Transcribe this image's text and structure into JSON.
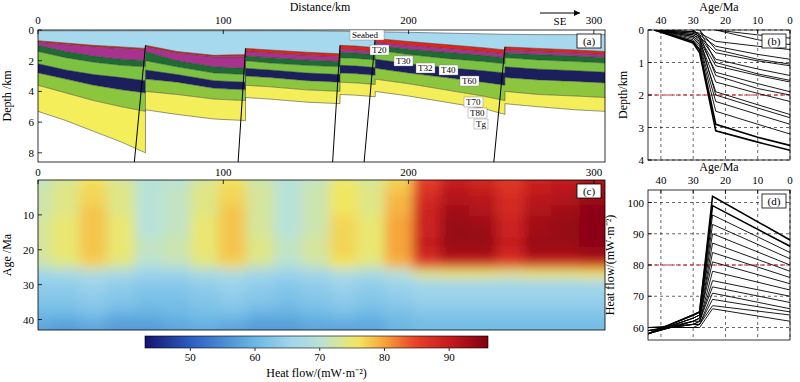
{
  "chart_data": [
    {
      "type": "cross_section",
      "title": "(a)",
      "x_label": "Distance/km",
      "y_label": "Depth /km",
      "annotation": "SE",
      "x": [
        0,
        15,
        30,
        45,
        58,
        58,
        75,
        95,
        112,
        112,
        125,
        145,
        163,
        163,
        172,
        182,
        182,
        200,
        220,
        240,
        252,
        252,
        270,
        290,
        306
      ],
      "series": [
        {
          "name": "Seabed",
          "color": "#a6d8ee",
          "values": [
            0.05,
            0.05,
            0.05,
            0.05,
            0.05,
            0.05,
            0.05,
            0.05,
            0.05,
            0.05,
            0.05,
            0.05,
            0.08,
            0.08,
            0.1,
            0.12,
            0.12,
            0.15,
            0.2,
            0.25,
            0.28,
            0.28,
            0.3,
            0.3,
            0.3
          ]
        },
        {
          "name": "T20",
          "color": "#e0241c",
          "values": [
            0.7,
            0.85,
            1.0,
            1.1,
            1.2,
            1.0,
            1.4,
            1.65,
            1.6,
            1.2,
            1.3,
            1.45,
            1.55,
            1.0,
            1.05,
            1.15,
            0.55,
            0.75,
            0.95,
            1.15,
            1.3,
            1.1,
            1.2,
            1.3,
            1.4
          ]
        },
        {
          "name": "T30",
          "color": "#a8338f",
          "values": [
            0.8,
            0.95,
            1.1,
            1.2,
            1.3,
            1.1,
            1.5,
            1.75,
            1.75,
            1.4,
            1.5,
            1.65,
            1.75,
            1.25,
            1.3,
            1.4,
            0.8,
            1.0,
            1.2,
            1.4,
            1.55,
            1.3,
            1.4,
            1.5,
            1.6
          ]
        },
        {
          "name": "T32",
          "color": "#1f6b34",
          "values": [
            1.0,
            1.4,
            1.7,
            1.9,
            2.0,
            1.4,
            2.0,
            2.4,
            2.5,
            1.7,
            1.8,
            1.95,
            2.05,
            1.45,
            1.5,
            1.6,
            1.0,
            1.25,
            1.45,
            1.65,
            1.8,
            1.5,
            1.6,
            1.7,
            1.8
          ]
        },
        {
          "name": "T40",
          "color": "#7cc242",
          "values": [
            1.4,
            1.8,
            2.1,
            2.3,
            2.4,
            2.0,
            2.4,
            2.8,
            2.9,
            2.0,
            2.15,
            2.3,
            2.4,
            1.8,
            1.85,
            1.95,
            1.3,
            1.6,
            1.85,
            2.05,
            2.2,
            1.8,
            1.95,
            2.05,
            2.15
          ]
        },
        {
          "name": "T60",
          "color": "#1b1f5c",
          "values": [
            2.2,
            2.6,
            2.9,
            3.1,
            3.3,
            2.6,
            2.9,
            3.3,
            3.4,
            2.5,
            2.6,
            2.8,
            2.9,
            2.3,
            2.35,
            2.45,
            1.9,
            2.2,
            2.45,
            2.65,
            2.8,
            2.4,
            2.55,
            2.65,
            2.75
          ]
        },
        {
          "name": "T70",
          "color": "#8cc63f",
          "values": [
            2.8,
            3.2,
            3.6,
            3.9,
            4.1,
            3.2,
            3.4,
            3.8,
            3.9,
            3.0,
            3.1,
            3.3,
            3.4,
            2.8,
            2.85,
            2.95,
            2.5,
            2.8,
            3.1,
            3.4,
            3.6,
            3.1,
            3.25,
            3.35,
            3.45
          ]
        },
        {
          "name": "T80",
          "color": "#f3ee5a",
          "values": [
            3.6,
            4.1,
            4.6,
            5.0,
            5.3,
            4.0,
            4.2,
            4.5,
            4.6,
            3.6,
            3.7,
            3.9,
            4.0,
            3.4,
            3.45,
            3.55,
            3.2,
            3.5,
            3.9,
            4.3,
            4.6,
            4.0,
            4.2,
            4.3,
            4.4
          ]
        },
        {
          "name": "Tg",
          "values": [
            5.3,
            5.9,
            6.6,
            7.3,
            8.0,
            5.2,
            5.5,
            5.8,
            5.9,
            4.4,
            4.5,
            4.7,
            4.8,
            4.2,
            4.25,
            4.35,
            4.0,
            4.3,
            4.7,
            5.1,
            5.5,
            4.8,
            5.0,
            5.2,
            5.3
          ]
        }
      ],
      "faults": [
        {
          "x": [
            58,
            52
          ],
          "depth": [
            1.0,
            8.6
          ]
        },
        {
          "x": [
            112,
            108
          ],
          "depth": [
            1.2,
            8.6
          ]
        },
        {
          "x": [
            163,
            159
          ],
          "depth": [
            1.0,
            8.6
          ]
        },
        {
          "x": [
            182,
            176
          ],
          "depth": [
            0.5,
            8.6
          ]
        },
        {
          "x": [
            252,
            246
          ],
          "depth": [
            1.1,
            8.6
          ]
        }
      ],
      "xlim": [
        0,
        306
      ],
      "ylim": [
        8.6,
        0
      ],
      "xticks": [
        0,
        100,
        200,
        300
      ],
      "yticks": [
        0,
        2,
        4,
        6,
        8
      ]
    },
    {
      "type": "line",
      "title": "(b)",
      "x_label": "Age/Ma",
      "y_label": "Depth/km",
      "color": "#000000",
      "grid": true,
      "x": [
        42,
        30,
        28,
        23,
        10,
        0
      ],
      "series": [
        {
          "values": [
            0,
            0.35,
            0.6,
            2.9,
            3.3,
            3.55
          ]
        },
        {
          "values": [
            0,
            0.4,
            0.7,
            3.1,
            3.45,
            3.7
          ]
        },
        {
          "values": [
            0,
            0.3,
            0.5,
            2.5,
            2.9,
            3.2
          ]
        },
        {
          "values": [
            0,
            0.25,
            0.45,
            2.2,
            2.6,
            2.9
          ]
        },
        {
          "values": [
            0,
            0.2,
            0.4,
            1.9,
            2.3,
            2.6
          ]
        },
        {
          "values": [
            0,
            0.2,
            0.35,
            1.6,
            1.95,
            2.2
          ]
        },
        {
          "values": [
            0,
            0.15,
            0.3,
            1.3,
            1.65,
            1.9
          ]
        },
        {
          "values": [
            0,
            0.15,
            0.25,
            1.1,
            1.4,
            1.6
          ]
        },
        {
          "values": [
            0,
            0.1,
            0.2,
            0.9,
            1.2,
            1.4
          ]
        },
        {
          "values": [
            0,
            0.1,
            0.2,
            0.7,
            0.95,
            1.1
          ]
        },
        {
          "values": [
            0,
            0.05,
            0.15,
            0.5,
            0.75,
            0.9
          ]
        },
        {
          "values": [
            0,
            0.05,
            0.1,
            0.35,
            0.5,
            0.6
          ]
        },
        {
          "values": [
            null,
            0,
            0.25,
            2.0,
            2.4,
            2.7
          ]
        },
        {
          "values": [
            null,
            0,
            0.15,
            1.4,
            1.8,
            2.0
          ]
        },
        {
          "values": [
            null,
            null,
            0,
            1.0,
            1.35,
            1.55
          ]
        },
        {
          "values": [
            null,
            null,
            0,
            0.6,
            0.9,
            1.05
          ]
        },
        {
          "values": [
            null,
            null,
            null,
            0,
            0.3,
            0.45
          ]
        },
        {
          "values": [
            null,
            null,
            null,
            0,
            0.15,
            0.25
          ]
        }
      ],
      "reference_lines": [
        {
          "value": 2,
          "color": "#e8141c",
          "line_style": "dashed"
        }
      ],
      "xlim": [
        44,
        0
      ],
      "ylim": [
        4,
        0
      ],
      "xticks": [
        40,
        30,
        20,
        10,
        0
      ],
      "yticks": [
        0,
        1,
        2,
        3,
        4
      ]
    },
    {
      "type": "heatmap",
      "title": "(c)",
      "y_label": "Age /Ma",
      "x": [
        0,
        15,
        30,
        45,
        60,
        75,
        90,
        105,
        120,
        135,
        150,
        165,
        180,
        195,
        210,
        225,
        240,
        255,
        270,
        285,
        300
      ],
      "y": [
        0,
        3,
        6,
        9,
        12,
        15,
        18,
        21,
        24,
        27,
        30,
        33,
        36,
        39,
        42
      ],
      "cells": [
        [
          71,
          73,
          76,
          73,
          70,
          70,
          73,
          76,
          72,
          70,
          71,
          75,
          73,
          77,
          85,
          89,
          88,
          86,
          89,
          90,
          92
        ],
        [
          72,
          74,
          77,
          74,
          70,
          71,
          74,
          77,
          73,
          70,
          72,
          76,
          74,
          78,
          87,
          91,
          90,
          87,
          90,
          91,
          93
        ],
        [
          72,
          74,
          77,
          74,
          70,
          71,
          74,
          77,
          73,
          70,
          72,
          76,
          74,
          79,
          88,
          92,
          91,
          88,
          91,
          92,
          94
        ],
        [
          72,
          74,
          78,
          74,
          70,
          71,
          74,
          78,
          73,
          70,
          72,
          76,
          74,
          79,
          89,
          93,
          92,
          88,
          92,
          93,
          95
        ],
        [
          73,
          75,
          78,
          75,
          70,
          71,
          75,
          78,
          73,
          70,
          72,
          77,
          75,
          80,
          89,
          94,
          93,
          89,
          93,
          94,
          95
        ],
        [
          73,
          75,
          78,
          75,
          70,
          71,
          75,
          78,
          73,
          70,
          72,
          77,
          75,
          80,
          89,
          94,
          94,
          89,
          93,
          94,
          95
        ],
        [
          73,
          75,
          78,
          75,
          71,
          72,
          75,
          78,
          74,
          71,
          73,
          77,
          75,
          80,
          90,
          94,
          94,
          90,
          94,
          94,
          95
        ],
        [
          73,
          75,
          78,
          75,
          71,
          72,
          75,
          78,
          74,
          71,
          73,
          77,
          75,
          80,
          89,
          93,
          93,
          89,
          93,
          93,
          94
        ],
        [
          72,
          74,
          77,
          74,
          70,
          71,
          74,
          77,
          73,
          70,
          72,
          76,
          74,
          79,
          86,
          89,
          89,
          86,
          89,
          89,
          90
        ],
        [
          66,
          67,
          68,
          67,
          65,
          65,
          67,
          68,
          66,
          65,
          66,
          68,
          67,
          70,
          74,
          75,
          75,
          74,
          75,
          75,
          76
        ],
        [
          64,
          64,
          65,
          64,
          63,
          63,
          64,
          65,
          64,
          63,
          64,
          65,
          64,
          65,
          66,
          66,
          66,
          66,
          66,
          66,
          66
        ],
        [
          63,
          63,
          64,
          63,
          62,
          62,
          63,
          64,
          63,
          62,
          63,
          64,
          63,
          64,
          65,
          65,
          65,
          65,
          65,
          65,
          65
        ],
        [
          62,
          62,
          63,
          62,
          61,
          61,
          62,
          63,
          62,
          61,
          62,
          63,
          62,
          63,
          64,
          64,
          64,
          64,
          64,
          64,
          64
        ],
        [
          60,
          60,
          61,
          59,
          59,
          60,
          61,
          61,
          59,
          59,
          60,
          61,
          60,
          61,
          62,
          62,
          62,
          62,
          62,
          62,
          62
        ],
        [
          58,
          57,
          58,
          57,
          57,
          58,
          59,
          58,
          57,
          57,
          58,
          58,
          58,
          60,
          61,
          61,
          61,
          61,
          61,
          61,
          61
        ]
      ],
      "colorbar": {
        "label": "Heat flow/(mW·m⁻²)",
        "range": [
          43,
          96
        ],
        "ticks": [
          50,
          60,
          70,
          80,
          90
        ]
      },
      "xlim": [
        0,
        306
      ],
      "ylim": [
        43,
        0
      ],
      "xticks": [
        0,
        100,
        200,
        300
      ],
      "yticks": [
        10,
        20,
        30,
        40
      ]
    },
    {
      "type": "line",
      "title": "(d)",
      "x_label": "Age/Ma",
      "y_label": "Heat flow/(mW·m⁻²)",
      "color": "#000000",
      "grid": true,
      "x": [
        44,
        30,
        28,
        24,
        0
      ],
      "series": [
        {
          "values": [
            58,
            64,
            65,
            102,
            88
          ]
        },
        {
          "values": [
            58,
            64,
            65,
            99,
            86
          ]
        },
        {
          "values": [
            58,
            63,
            64,
            96,
            84
          ]
        },
        {
          "values": [
            58,
            63,
            64,
            93,
            82
          ]
        },
        {
          "values": [
            58,
            63,
            64,
            90,
            80
          ]
        },
        {
          "values": [
            58,
            62,
            63,
            87,
            78
          ]
        },
        {
          "values": [
            58,
            62,
            63,
            84,
            76
          ]
        },
        {
          "values": [
            58,
            62,
            63,
            81,
            74
          ]
        },
        {
          "values": [
            59,
            62,
            62,
            78,
            72
          ]
        },
        {
          "values": [
            59,
            61,
            62,
            75,
            70
          ]
        },
        {
          "values": [
            59,
            61,
            62,
            73,
            68
          ]
        },
        {
          "values": [
            59,
            61,
            61,
            71,
            66
          ]
        },
        {
          "values": [
            60,
            61,
            61,
            69,
            65
          ]
        },
        {
          "values": [
            60,
            60,
            61,
            67,
            64
          ]
        },
        {
          "values": [
            60,
            60,
            60,
            66,
            62
          ]
        }
      ],
      "reference_lines": [
        {
          "value": 80,
          "color": "#e8141c",
          "line_style": "dashed"
        }
      ],
      "xlim": [
        44,
        0
      ],
      "ylim": [
        56,
        104
      ],
      "xticks": [
        40,
        30,
        20,
        10,
        0
      ],
      "yticks": [
        60,
        70,
        80,
        90,
        100
      ]
    }
  ]
}
